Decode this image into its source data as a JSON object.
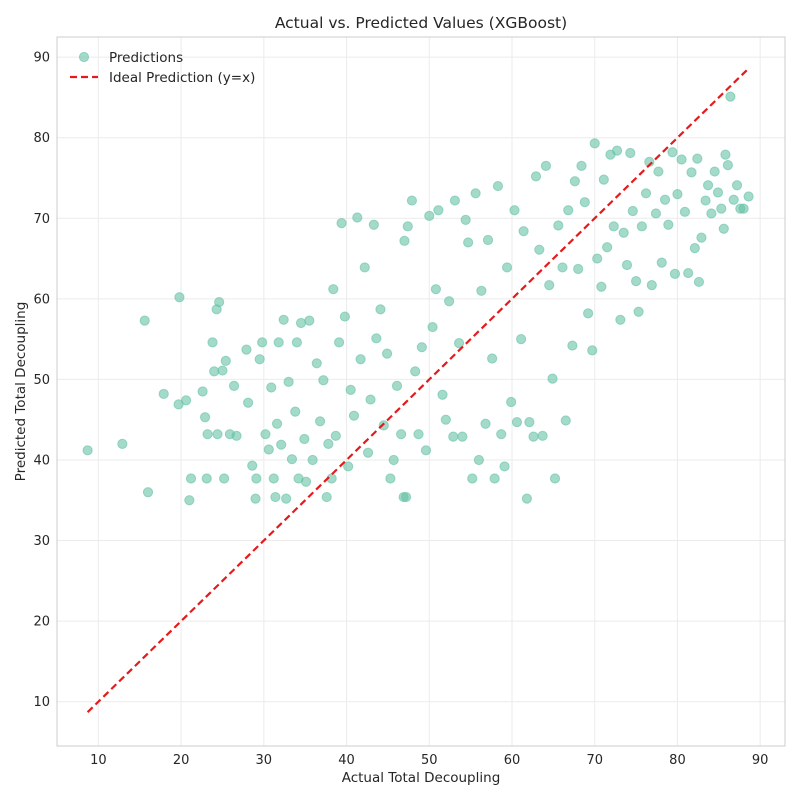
{
  "chart_data": {
    "type": "scatter",
    "title": "Actual vs. Predicted Values (XGBoost)",
    "xlabel": "Actual Total Decoupling",
    "ylabel": "Predicted Total Decoupling",
    "xlim": [
      5,
      93
    ],
    "ylim": [
      4.5,
      92.5
    ],
    "xticks": [
      10,
      20,
      30,
      40,
      50,
      60,
      70,
      80,
      90
    ],
    "yticks": [
      10,
      20,
      30,
      40,
      50,
      60,
      70,
      80,
      90
    ],
    "grid": true,
    "legend_position": "top-left",
    "series": [
      {
        "name": "Predictions",
        "kind": "scatter",
        "color": "#66c2a5",
        "opacity": 0.6,
        "points": [
          [
            8.7,
            41.2
          ],
          [
            12.9,
            42.0
          ],
          [
            15.6,
            57.3
          ],
          [
            16.0,
            36.0
          ],
          [
            17.9,
            48.2
          ],
          [
            19.8,
            60.2
          ],
          [
            19.7,
            46.9
          ],
          [
            20.6,
            47.4
          ],
          [
            21.0,
            35.0
          ],
          [
            21.2,
            37.7
          ],
          [
            22.6,
            48.5
          ],
          [
            22.9,
            45.3
          ],
          [
            23.1,
            37.7
          ],
          [
            23.2,
            43.2
          ],
          [
            23.8,
            54.6
          ],
          [
            24.0,
            51.0
          ],
          [
            24.3,
            58.7
          ],
          [
            24.6,
            59.6
          ],
          [
            24.4,
            43.2
          ],
          [
            25.0,
            51.1
          ],
          [
            25.2,
            37.7
          ],
          [
            25.4,
            52.3
          ],
          [
            25.9,
            43.2
          ],
          [
            26.4,
            49.2
          ],
          [
            26.7,
            43.0
          ],
          [
            27.9,
            53.7
          ],
          [
            28.1,
            47.1
          ],
          [
            28.6,
            39.3
          ],
          [
            29.0,
            35.2
          ],
          [
            29.1,
            37.7
          ],
          [
            29.5,
            52.5
          ],
          [
            29.8,
            54.6
          ],
          [
            30.2,
            43.2
          ],
          [
            30.6,
            41.3
          ],
          [
            30.9,
            49.0
          ],
          [
            31.2,
            37.7
          ],
          [
            31.4,
            35.4
          ],
          [
            31.6,
            44.5
          ],
          [
            31.8,
            54.6
          ],
          [
            32.1,
            41.9
          ],
          [
            32.4,
            57.4
          ],
          [
            32.7,
            35.2
          ],
          [
            33.0,
            49.7
          ],
          [
            33.4,
            40.1
          ],
          [
            33.8,
            46.0
          ],
          [
            34.0,
            54.6
          ],
          [
            34.2,
            37.7
          ],
          [
            34.5,
            57.0
          ],
          [
            34.9,
            42.6
          ],
          [
            35.1,
            37.3
          ],
          [
            35.5,
            57.3
          ],
          [
            35.9,
            40.0
          ],
          [
            36.4,
            52.0
          ],
          [
            36.8,
            44.8
          ],
          [
            37.2,
            49.9
          ],
          [
            37.6,
            35.4
          ],
          [
            37.8,
            42.0
          ],
          [
            38.2,
            37.7
          ],
          [
            38.4,
            61.2
          ],
          [
            38.7,
            43.0
          ],
          [
            39.1,
            54.6
          ],
          [
            39.4,
            69.4
          ],
          [
            39.8,
            57.8
          ],
          [
            40.2,
            39.2
          ],
          [
            40.5,
            48.7
          ],
          [
            40.9,
            45.5
          ],
          [
            41.3,
            70.1
          ],
          [
            41.7,
            52.5
          ],
          [
            42.2,
            63.9
          ],
          [
            42.6,
            40.9
          ],
          [
            42.9,
            47.5
          ],
          [
            43.3,
            69.2
          ],
          [
            43.6,
            55.1
          ],
          [
            44.1,
            58.7
          ],
          [
            44.5,
            44.3
          ],
          [
            44.9,
            53.2
          ],
          [
            45.3,
            37.7
          ],
          [
            45.7,
            40.0
          ],
          [
            46.1,
            49.2
          ],
          [
            46.6,
            43.2
          ],
          [
            46.9,
            35.4
          ],
          [
            47.2,
            35.4
          ],
          [
            47.0,
            67.2
          ],
          [
            47.4,
            69.0
          ],
          [
            47.9,
            72.2
          ],
          [
            48.3,
            51.0
          ],
          [
            48.7,
            43.2
          ],
          [
            49.1,
            54.0
          ],
          [
            49.6,
            41.2
          ],
          [
            50.0,
            70.3
          ],
          [
            50.4,
            56.5
          ],
          [
            50.8,
            61.2
          ],
          [
            51.1,
            71.0
          ],
          [
            51.6,
            48.1
          ],
          [
            52.0,
            45.0
          ],
          [
            52.4,
            59.7
          ],
          [
            52.9,
            42.9
          ],
          [
            53.1,
            72.2
          ],
          [
            53.6,
            54.5
          ],
          [
            54.0,
            42.9
          ],
          [
            54.4,
            69.8
          ],
          [
            54.7,
            67.0
          ],
          [
            55.2,
            37.7
          ],
          [
            55.6,
            73.1
          ],
          [
            56.0,
            40.0
          ],
          [
            56.3,
            61.0
          ],
          [
            56.8,
            44.5
          ],
          [
            57.1,
            67.3
          ],
          [
            57.6,
            52.6
          ],
          [
            57.9,
            37.7
          ],
          [
            58.3,
            74.0
          ],
          [
            58.7,
            43.2
          ],
          [
            59.1,
            39.2
          ],
          [
            59.4,
            63.9
          ],
          [
            59.9,
            47.2
          ],
          [
            60.3,
            71.0
          ],
          [
            60.6,
            44.7
          ],
          [
            61.1,
            55.0
          ],
          [
            61.4,
            68.4
          ],
          [
            61.8,
            35.2
          ],
          [
            62.1,
            44.7
          ],
          [
            62.6,
            42.9
          ],
          [
            62.9,
            75.2
          ],
          [
            63.3,
            66.1
          ],
          [
            63.7,
            43.0
          ],
          [
            64.1,
            76.5
          ],
          [
            64.5,
            61.7
          ],
          [
            64.9,
            50.1
          ],
          [
            65.2,
            37.7
          ],
          [
            65.6,
            69.1
          ],
          [
            66.1,
            63.9
          ],
          [
            66.5,
            44.9
          ],
          [
            66.8,
            71.0
          ],
          [
            67.3,
            54.2
          ],
          [
            67.6,
            74.6
          ],
          [
            68.0,
            63.7
          ],
          [
            68.4,
            76.5
          ],
          [
            68.8,
            72.0
          ],
          [
            69.2,
            58.2
          ],
          [
            69.7,
            53.6
          ],
          [
            70.0,
            79.3
          ],
          [
            70.3,
            65.0
          ],
          [
            70.8,
            61.5
          ],
          [
            71.1,
            74.8
          ],
          [
            71.5,
            66.4
          ],
          [
            71.9,
            77.9
          ],
          [
            72.3,
            69.0
          ],
          [
            72.7,
            78.4
          ],
          [
            73.1,
            57.4
          ],
          [
            73.5,
            68.2
          ],
          [
            73.9,
            64.2
          ],
          [
            74.3,
            78.1
          ],
          [
            74.6,
            70.9
          ],
          [
            75.0,
            62.2
          ],
          [
            75.3,
            58.4
          ],
          [
            75.7,
            69.0
          ],
          [
            76.2,
            73.1
          ],
          [
            76.6,
            77.0
          ],
          [
            76.9,
            61.7
          ],
          [
            77.4,
            70.6
          ],
          [
            77.7,
            75.8
          ],
          [
            78.1,
            64.5
          ],
          [
            78.5,
            72.3
          ],
          [
            78.9,
            69.2
          ],
          [
            79.4,
            78.2
          ],
          [
            79.7,
            63.1
          ],
          [
            80.0,
            73.0
          ],
          [
            80.5,
            77.3
          ],
          [
            80.9,
            70.8
          ],
          [
            81.3,
            63.2
          ],
          [
            81.7,
            75.7
          ],
          [
            82.1,
            66.3
          ],
          [
            82.4,
            77.4
          ],
          [
            82.6,
            62.1
          ],
          [
            82.9,
            67.6
          ],
          [
            83.4,
            72.2
          ],
          [
            83.7,
            74.1
          ],
          [
            84.1,
            70.6
          ],
          [
            84.5,
            75.8
          ],
          [
            84.9,
            73.2
          ],
          [
            85.3,
            71.2
          ],
          [
            85.6,
            68.7
          ],
          [
            85.8,
            77.9
          ],
          [
            86.1,
            76.6
          ],
          [
            86.4,
            85.1
          ],
          [
            86.8,
            72.3
          ],
          [
            87.2,
            74.1
          ],
          [
            87.6,
            71.2
          ],
          [
            88.0,
            71.2
          ],
          [
            88.6,
            72.7
          ]
        ]
      },
      {
        "name": "Ideal Prediction (y=x)",
        "kind": "line",
        "color": "#e41a1c",
        "dash": true,
        "points": [
          [
            8.7,
            8.7
          ],
          [
            88.6,
            88.6
          ]
        ]
      }
    ]
  }
}
